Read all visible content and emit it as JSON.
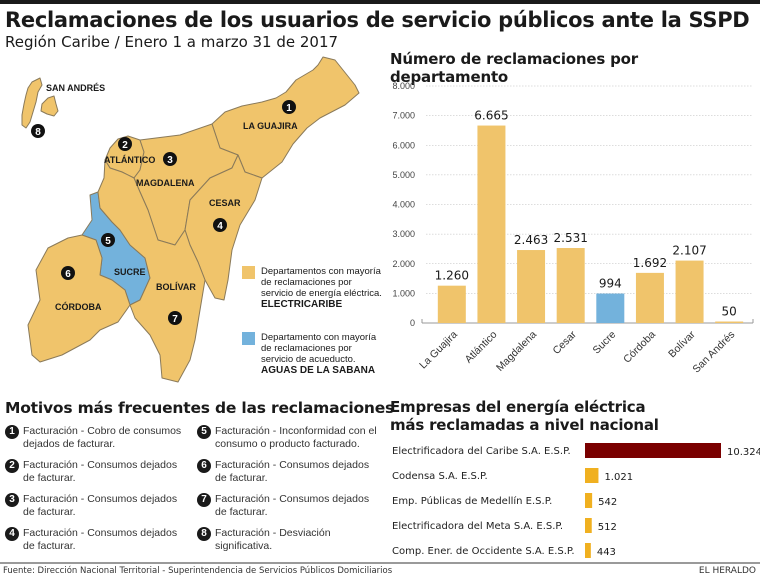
{
  "header": {
    "title": "Reclamaciones de los usuarios de servicio públicos ante la SSPD",
    "subtitle": "Región Caribe / Enero 1 a marzo 31 de 2017"
  },
  "colors": {
    "electric": "#f0c46b",
    "water": "#73b2dc",
    "top_company": "#7a0000",
    "other_company": "#f0b020",
    "text": "#1a1a1a"
  },
  "map": {
    "departments": [
      {
        "name": "SAN ANDRÉS",
        "number": "8",
        "service": "electric"
      },
      {
        "name": "LA GUAJIRA",
        "number": "1",
        "service": "electric"
      },
      {
        "name": "ATLÁNTICO",
        "number": "2",
        "service": "electric"
      },
      {
        "name": "MAGDALENA",
        "number": "3",
        "service": "electric"
      },
      {
        "name": "CESAR",
        "number": "4",
        "service": "electric"
      },
      {
        "name": "SUCRE",
        "number": "5",
        "service": "water"
      },
      {
        "name": "CÓRDOBA",
        "number": "6",
        "service": "electric"
      },
      {
        "name": "BOLÍVAR",
        "number": "7",
        "service": "electric"
      }
    ],
    "legend": [
      {
        "text": "Departamentos con mayoría de reclamaciones por servicio de energía eléctrica.",
        "company": "ELECTRICARIBE"
      },
      {
        "text": "Departamento con mayoría de reclamaciones por servicio de acueducto.",
        "company": "AGUAS DE LA SABANA"
      }
    ]
  },
  "chart_data": [
    {
      "type": "bar",
      "title": "Número de reclamaciones por departamento",
      "categories": [
        "La Guajira",
        "Atlántico",
        "Magdalena",
        "Cesar",
        "Sucre",
        "Córdoba",
        "Bolívar",
        "San Andrés"
      ],
      "values": [
        1260,
        6665,
        2463,
        2531,
        994,
        1692,
        2107,
        50
      ],
      "value_labels": [
        "1.260",
        "6.665",
        "2.463",
        "2.531",
        "994",
        "1.692",
        "2.107",
        "50"
      ],
      "highlight": [
        false,
        false,
        false,
        false,
        true,
        false,
        false,
        false
      ],
      "yticks": [
        0,
        1000,
        2000,
        3000,
        4000,
        5000,
        6000,
        7000,
        8000
      ],
      "ytick_labels": [
        "0",
        "1.000",
        "2.000",
        "3.000",
        "4.000",
        "5.000",
        "6.000",
        "7.000",
        "8.000"
      ],
      "ylim": [
        0,
        8000
      ],
      "xlabel": "",
      "ylabel": "",
      "grid": true
    },
    {
      "type": "bar",
      "orientation": "horizontal",
      "title": "Empresas del energía eléctrica más reclamadas a nivel nacional",
      "title_lines": [
        "Empresas del energía eléctrica",
        "más reclamadas a nivel nacional"
      ],
      "categories": [
        "Electrificadora del Caribe S.A. E.S.P.",
        "Codensa S.A. E.S.P.",
        "Emp. Públicas de Medellín E.S.P.",
        "Electrificadora del Meta S.A. E.S.P.",
        "Comp. Ener. de Occidente S.A. E.S.P."
      ],
      "values": [
        10324,
        1021,
        542,
        512,
        443
      ],
      "value_labels": [
        "10.324",
        "1.021",
        "542",
        "512",
        "443"
      ],
      "grid": false
    }
  ],
  "motivos": {
    "title": "Motivos más frecuentes de las reclamaciones",
    "items": [
      {
        "number": "1",
        "text": "Facturación - Cobro de consumos dejados de facturar."
      },
      {
        "number": "2",
        "text": "Facturación - Consumos dejados de facturar."
      },
      {
        "number": "3",
        "text": "Facturación - Consumos dejados de facturar."
      },
      {
        "number": "4",
        "text": "Facturación - Consumos dejados de facturar."
      },
      {
        "number": "5",
        "text": "Facturación - Inconformidad con el consumo o producto facturado."
      },
      {
        "number": "6",
        "text": "Facturación - Consumos dejados de facturar."
      },
      {
        "number": "7",
        "text": "Facturación - Consumos dejados de facturar."
      },
      {
        "number": "8",
        "text": "Facturación - Desviación significativa."
      }
    ]
  },
  "footer": {
    "source": "Fuente: Dirección Nacional Territorial - Superintendencia de Servicios Públicos Domiciliarios",
    "brand": "EL HERALDO"
  }
}
